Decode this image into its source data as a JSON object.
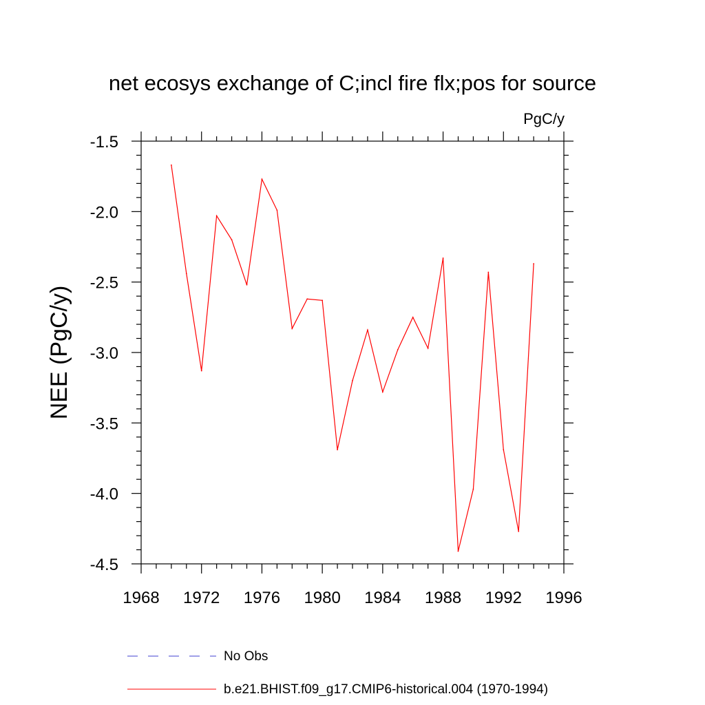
{
  "chart_data": {
    "type": "line",
    "title": "net ecosys exchange of C;incl fire flx;pos for source",
    "units_label": "PgC/y",
    "ylabel": "NEE  (PgC/y)",
    "xlabel": "",
    "xlim": [
      1968,
      1996
    ],
    "ylim": [
      -4.5,
      -1.5
    ],
    "x_ticks": [
      1968,
      1972,
      1976,
      1980,
      1984,
      1988,
      1992,
      1996
    ],
    "x_tick_labels": [
      "1968",
      "1972",
      "1976",
      "1980",
      "1984",
      "1988",
      "1992",
      "1996"
    ],
    "y_ticks": [
      -1.5,
      -2.0,
      -2.5,
      -3.0,
      -3.5,
      -4.0,
      -4.5
    ],
    "y_tick_labels": [
      "-1.5",
      "-2.0",
      "-2.5",
      "-3.0",
      "-3.5",
      "-4.0",
      "-4.5"
    ],
    "grid": false,
    "legend_position": "bottom",
    "x": [
      1970,
      1971,
      1972,
      1973,
      1974,
      1975,
      1976,
      1977,
      1978,
      1979,
      1980,
      1981,
      1982,
      1983,
      1984,
      1985,
      1986,
      1987,
      1988,
      1989,
      1990,
      1991,
      1992,
      1993,
      1994
    ],
    "series": [
      {
        "name": "b.e21.BHIST.f09_g17.CMIP6-historical.004 (1970-1994)",
        "color": "#ff0000",
        "dash": "solid",
        "values": [
          -1.67,
          -2.44,
          -3.13,
          -2.03,
          -2.2,
          -2.52,
          -1.77,
          -1.99,
          -2.83,
          -2.62,
          -2.63,
          -3.69,
          -3.2,
          -2.84,
          -3.28,
          -2.98,
          -2.75,
          -2.97,
          -2.33,
          -4.41,
          -3.97,
          -2.43,
          -3.69,
          -4.27,
          -2.37
        ]
      }
    ],
    "legend": [
      {
        "label": "No Obs",
        "color": "#3f3fd0",
        "dash": "dashed"
      },
      {
        "label": "b.e21.BHIST.f09_g17.CMIP6-historical.004 (1970-1994)",
        "color": "#ff0000",
        "dash": "solid"
      }
    ]
  }
}
